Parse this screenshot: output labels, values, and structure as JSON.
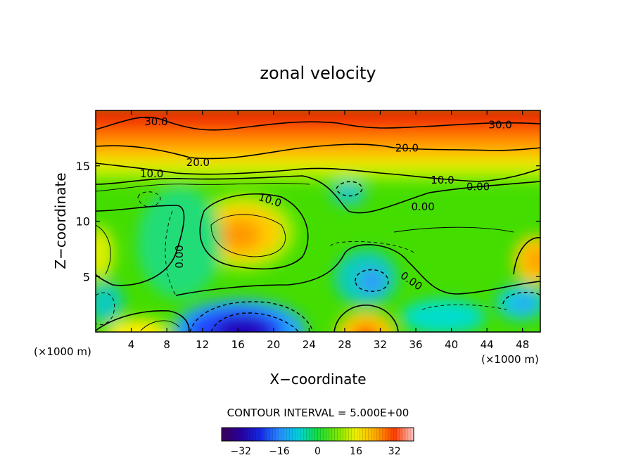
{
  "chart_data": {
    "type": "heatmap",
    "title": "zonal velocity",
    "xlabel": "X−coordinate",
    "ylabel": "Z−coordinate",
    "x_unit_left": "(×1000 m)",
    "x_unit_right": "(×1000 m)",
    "xlim": [
      0,
      50
    ],
    "ylim": [
      0,
      20
    ],
    "x_ticks": [
      4,
      8,
      12,
      16,
      20,
      24,
      28,
      32,
      36,
      40,
      44,
      48
    ],
    "y_ticks": [
      5,
      10,
      15
    ],
    "contour_interval_label": "CONTOUR INTERVAL = 5.000E+00",
    "colorbar": {
      "min": -40,
      "max": 40,
      "ticks": [
        -32,
        -16,
        0,
        16,
        32
      ],
      "tick_labels": [
        "−32",
        "−16",
        "0",
        "16",
        "32"
      ]
    },
    "contour_labels": [
      {
        "text": "30.0",
        "x": 6.8,
        "z": 19.0
      },
      {
        "text": "30.0",
        "x": 45.5,
        "z": 18.7
      },
      {
        "text": "20.0",
        "x": 11.5,
        "z": 15.3
      },
      {
        "text": "20.0",
        "x": 35.0,
        "z": 16.6
      },
      {
        "text": "10.0",
        "x": 6.3,
        "z": 14.3
      },
      {
        "text": "10.0",
        "x": 39.0,
        "z": 13.7
      },
      {
        "text": "10.0",
        "x": 19.6,
        "z": 11.9
      },
      {
        "text": "0.00",
        "x": 43.0,
        "z": 13.1
      },
      {
        "text": "0.00",
        "x": 36.8,
        "z": 11.3
      },
      {
        "text": "0.00",
        "x": 9.4,
        "z": 6.8
      },
      {
        "text": "0.00",
        "x": 35.5,
        "z": 4.6
      }
    ],
    "field_features": [
      {
        "kind": "max",
        "x": 16.0,
        "z": 8.5,
        "value": 16
      },
      {
        "kind": "max",
        "x": 49.0,
        "z": 6.0,
        "value": 15
      },
      {
        "kind": "max",
        "x": 0.3,
        "z": 7.0,
        "value": 12
      },
      {
        "kind": "max",
        "x": 31.0,
        "z": 0.3,
        "value": 18
      },
      {
        "kind": "max",
        "x": 4.5,
        "z": 0.3,
        "value": 10
      },
      {
        "kind": "min",
        "x": 17.0,
        "z": 0.6,
        "value": -30
      },
      {
        "kind": "min",
        "x": 31.0,
        "z": 4.5,
        "value": -14
      },
      {
        "kind": "min",
        "x": 47.5,
        "z": 2.5,
        "value": -12
      },
      {
        "kind": "min",
        "x": 27.5,
        "z": 12.5,
        "value": -12
      },
      {
        "kind": "min",
        "x": 0.5,
        "z": 2.5,
        "value": -10
      },
      {
        "kind": "min",
        "x": 6.0,
        "z": 11.5,
        "value": -8
      }
    ],
    "grid": false,
    "legend": "bottom-center colorbar"
  }
}
